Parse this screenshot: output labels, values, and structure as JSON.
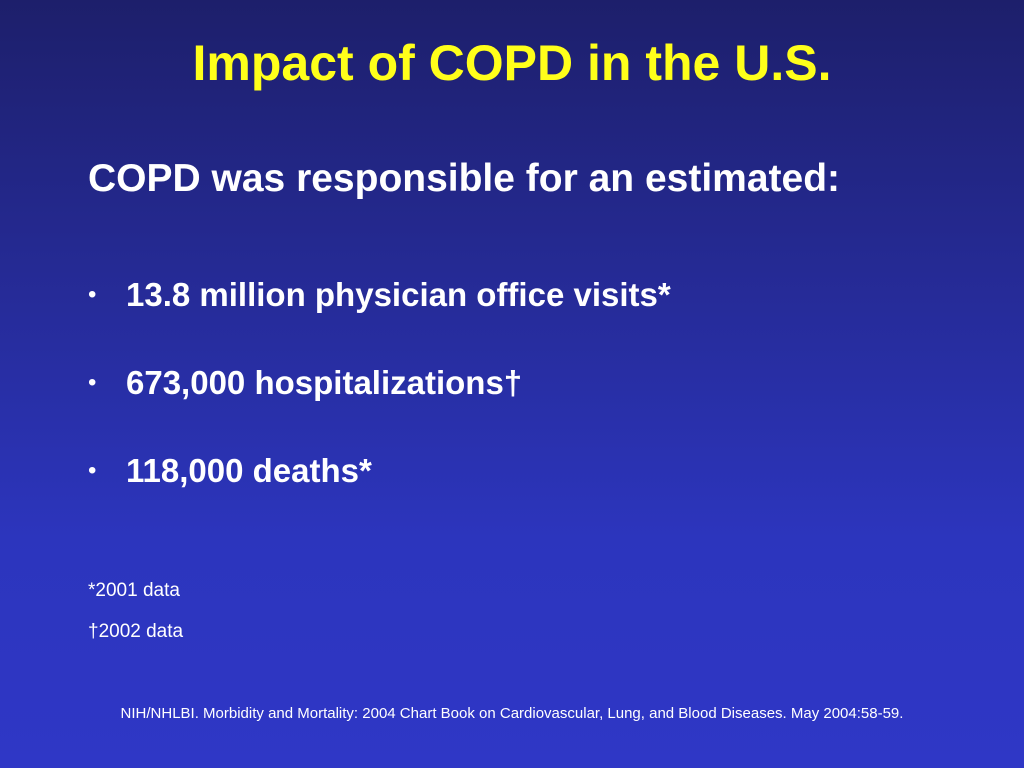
{
  "slide": {
    "title": "Impact of COPD in the U.S.",
    "subtitle": "COPD was responsible for an estimated:",
    "bullet_glyph": "•",
    "bullets": [
      "13.8 million physician office visits*",
      "673,000 hospitalizations†",
      "118,000 deaths*"
    ],
    "footnotes": [
      "*2001 data",
      "†2002 data"
    ],
    "citation": "NIH/NHLBI. Morbidity and Mortality: 2004 Chart Book on Cardiovascular, Lung, and Blood Diseases. May 2004:58-59."
  },
  "colors": {
    "title": "#ffff1a",
    "text": "#ffffff",
    "background_top": "#1d1f6b",
    "background_bottom": "#2f37c6"
  }
}
